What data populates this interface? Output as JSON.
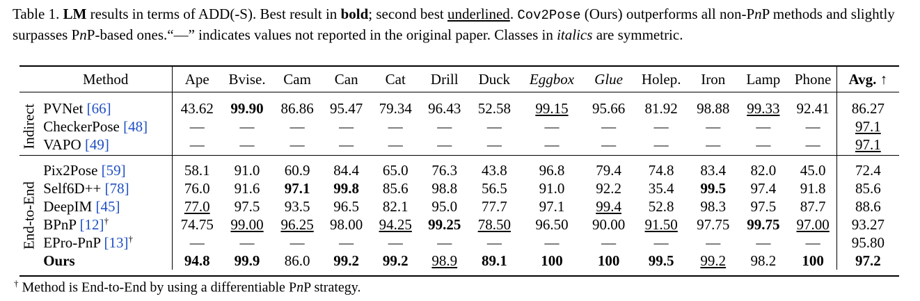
{
  "caption": {
    "label": "Table 1.",
    "part1": "LM",
    "part2": " results in terms of ADD(-S). Best result in ",
    "bold_word": "bold",
    "part3": "; second best ",
    "underlined_word": "underlined",
    "part4": ". ",
    "method_name": "Cov2Pose",
    "part5": " (Ours) outperforms all non-P",
    "n_letter": "n",
    "part6": "P methods and slightly surpasses P",
    "part7": "P-based ones.“—” indicates values not reported in the original paper. Classes in ",
    "italics_word": "italics",
    "part8": " are symmetric."
  },
  "table": {
    "header": {
      "method": "Method",
      "columns": [
        "Ape",
        "Bvise.",
        "Cam",
        "Can",
        "Cat",
        "Drill",
        "Duck",
        "Eggbox",
        "Glue",
        "Holep.",
        "Iron",
        "Lamp",
        "Phone"
      ],
      "avg": "Avg. ↑"
    },
    "groups": [
      {
        "label": "Indirect",
        "rows": [
          {
            "name": "PVNet ",
            "cite": "[66]",
            "sup": "",
            "values": [
              "43.62",
              "99.90",
              "86.86",
              "95.47",
              "79.34",
              "96.43",
              "52.58",
              "99.15",
              "95.66",
              "81.92",
              "98.88",
              "99.33",
              "92.41"
            ],
            "avg": "86.27"
          },
          {
            "name": "CheckerPose ",
            "cite": "[48]",
            "sup": "",
            "values": [
              "—",
              "—",
              "—",
              "—",
              "—",
              "—",
              "—",
              "—",
              "—",
              "—",
              "—",
              "—",
              "—"
            ],
            "avg": "97.1"
          },
          {
            "name": "VAPO ",
            "cite": "[49]",
            "sup": "",
            "values": [
              "—",
              "—",
              "—",
              "—",
              "—",
              "—",
              "—",
              "—",
              "—",
              "—",
              "—",
              "—",
              "—"
            ],
            "avg": "97.1"
          }
        ]
      },
      {
        "label": "End-to-End",
        "rows": [
          {
            "name": "Pix2Pose ",
            "cite": "[59]",
            "sup": "",
            "values": [
              "58.1",
              "91.0",
              "60.9",
              "84.4",
              "65.0",
              "76.3",
              "43.8",
              "96.8",
              "79.4",
              "74.8",
              "83.4",
              "82.0",
              "45.0"
            ],
            "avg": "72.4"
          },
          {
            "name": "Self6D++ ",
            "cite": "[78]",
            "sup": "",
            "values": [
              "76.0",
              "91.6",
              "97.1",
              "99.8",
              "85.6",
              "98.8",
              "56.5",
              "91.0",
              "92.2",
              "35.4",
              "99.5",
              "97.4",
              "91.8"
            ],
            "avg": "85.6"
          },
          {
            "name": "DeepIM ",
            "cite": "[45]",
            "sup": "",
            "values": [
              "77.0",
              "97.5",
              "93.5",
              "96.5",
              "82.1",
              "95.0",
              "77.7",
              "97.1",
              "99.4",
              "52.8",
              "98.3",
              "97.5",
              "87.7"
            ],
            "avg": "88.6"
          },
          {
            "name": "BPnP ",
            "cite": "[12]",
            "sup": "†",
            "values": [
              "74.75",
              "99.00",
              "96.25",
              "98.00",
              "94.25",
              "99.25",
              "78.50",
              "96.50",
              "90.00",
              "91.50",
              "97.75",
              "99.75",
              "97.00"
            ],
            "avg": "93.27"
          },
          {
            "name": "EPro-PnP ",
            "cite": "[13]",
            "sup": "†",
            "values": [
              "—",
              "—",
              "—",
              "—",
              "—",
              "—",
              "—",
              "—",
              "—",
              "—",
              "—",
              "—",
              "—"
            ],
            "avg": "95.80"
          },
          {
            "name": "Ours",
            "cite": "",
            "sup": "",
            "values": [
              "94.8",
              "99.9",
              "86.0",
              "99.2",
              "99.2",
              "98.9",
              "89.1",
              "100",
              "100",
              "99.5",
              "99.2",
              "98.2",
              "100"
            ],
            "avg": "97.2"
          }
        ]
      }
    ]
  },
  "footnote": {
    "mark": "†",
    "text_a": " Method is End-to-End by using a differentiable P",
    "text_n": "n",
    "text_b": "P strategy."
  }
}
